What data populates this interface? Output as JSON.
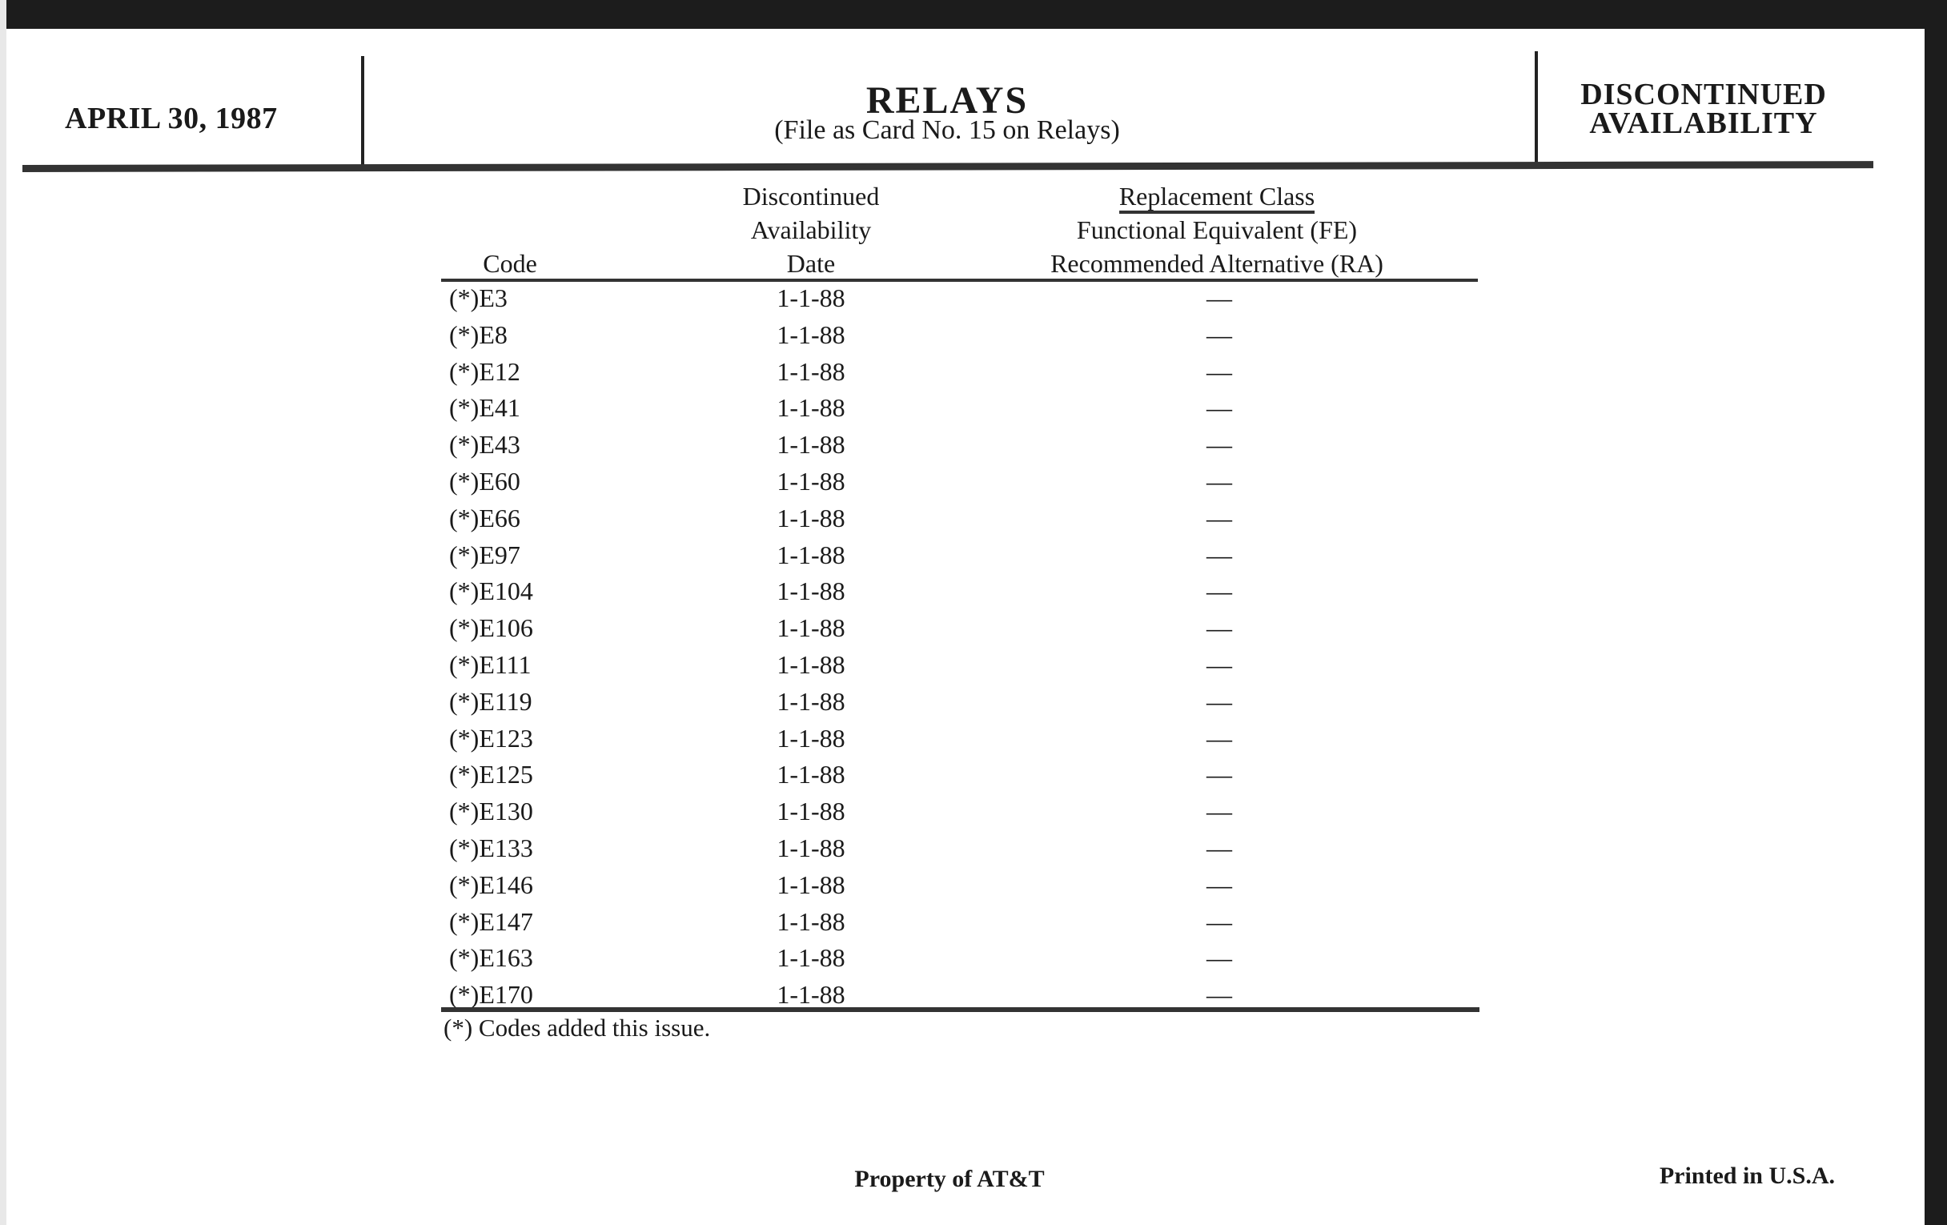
{
  "header": {
    "date": "APRIL 30, 1987",
    "title": "RELAYS",
    "subtitle": "(File as Card No. 15 on Relays)",
    "status_line1": "DISCONTINUED",
    "status_line2": "AVAILABILITY"
  },
  "table": {
    "headers": {
      "code": "Code",
      "date_line1": "Discontinued",
      "date_line2": "Availability",
      "date_line3": "Date",
      "replacement_line1": "Replacement Class",
      "replacement_line2": "Functional Equivalent (FE)",
      "replacement_line3": "Recommended Alternative (RA)"
    },
    "rows": [
      {
        "code": "(*)E3",
        "date": "1-1-88",
        "replacement": "—"
      },
      {
        "code": "(*)E8",
        "date": "1-1-88",
        "replacement": "—"
      },
      {
        "code": "(*)E12",
        "date": "1-1-88",
        "replacement": "—"
      },
      {
        "code": "(*)E41",
        "date": "1-1-88",
        "replacement": "—"
      },
      {
        "code": "(*)E43",
        "date": "1-1-88",
        "replacement": "—"
      },
      {
        "code": "(*)E60",
        "date": "1-1-88",
        "replacement": "—"
      },
      {
        "code": "(*)E66",
        "date": "1-1-88",
        "replacement": "—"
      },
      {
        "code": "(*)E97",
        "date": "1-1-88",
        "replacement": "—"
      },
      {
        "code": "(*)E104",
        "date": "1-1-88",
        "replacement": "—"
      },
      {
        "code": "(*)E106",
        "date": "1-1-88",
        "replacement": "—"
      },
      {
        "code": "(*)E111",
        "date": "1-1-88",
        "replacement": "—"
      },
      {
        "code": "(*)E119",
        "date": "1-1-88",
        "replacement": "—"
      },
      {
        "code": "(*)E123",
        "date": "1-1-88",
        "replacement": "—"
      },
      {
        "code": "(*)E125",
        "date": "1-1-88",
        "replacement": "—"
      },
      {
        "code": "(*)E130",
        "date": "1-1-88",
        "replacement": "—"
      },
      {
        "code": "(*)E133",
        "date": "1-1-88",
        "replacement": "—"
      },
      {
        "code": "(*)E146",
        "date": "1-1-88",
        "replacement": "—"
      },
      {
        "code": "(*)E147",
        "date": "1-1-88",
        "replacement": "—"
      },
      {
        "code": "(*)E163",
        "date": "1-1-88",
        "replacement": "—"
      },
      {
        "code": "(*)E170",
        "date": "1-1-88",
        "replacement": "—"
      }
    ],
    "footnote": "(*) Codes added this issue."
  },
  "footer": {
    "property": "Property of AT&T",
    "printed": "Printed in U.S.A."
  }
}
